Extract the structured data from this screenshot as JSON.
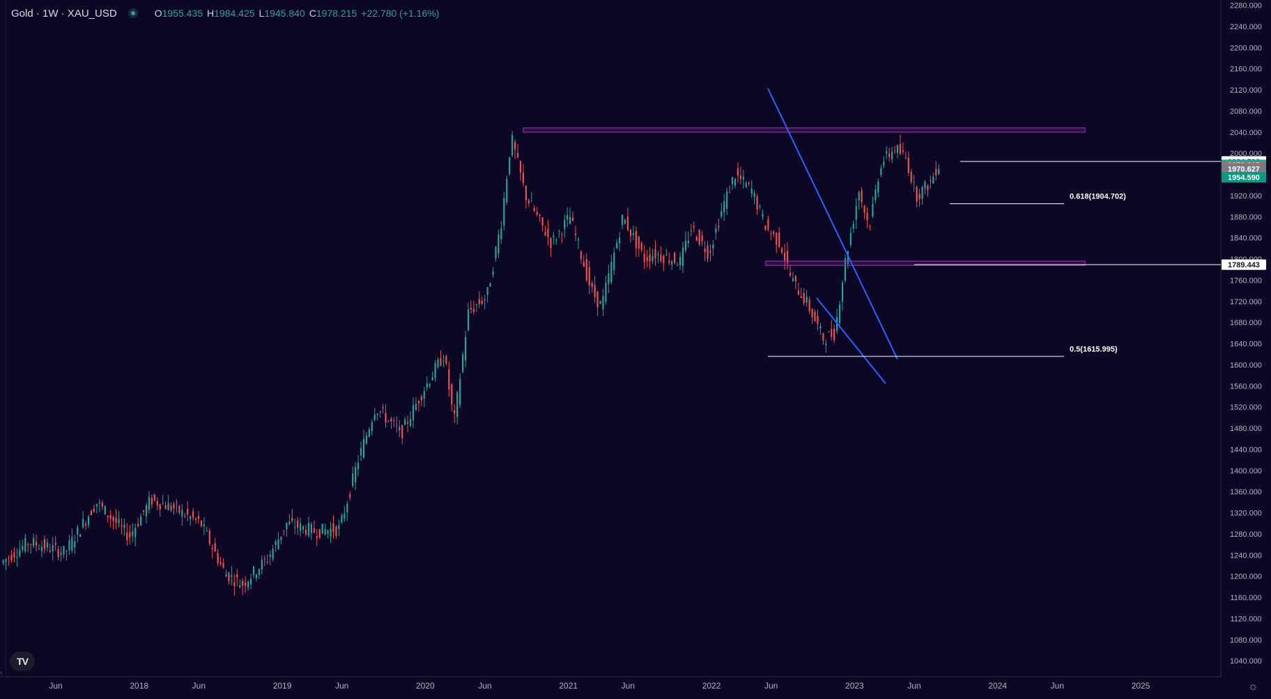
{
  "header": {
    "symbol": "Gold · 1W · XAU_USD",
    "open_label": "O",
    "open": "1955.435",
    "high_label": "H",
    "high": "1984.425",
    "low_label": "L",
    "low": "1945.840",
    "close_label": "C",
    "close": "1978.215",
    "change": "+22.780 (+1.16%)"
  },
  "price_axis": {
    "min": 1010,
    "max": 2290,
    "ticks": [
      "1040.000",
      "1080.000",
      "1120.000",
      "1160.000",
      "1200.000",
      "1240.000",
      "1280.000",
      "1320.000",
      "1360.000",
      "1400.000",
      "1440.000",
      "1480.000",
      "1520.000",
      "1560.000",
      "1600.000",
      "1640.000",
      "1680.000",
      "1720.000",
      "1760.000",
      "1800.000",
      "1840.000",
      "1880.000",
      "1920.000",
      "1960.000",
      "2000.000",
      "2040.000",
      "2080.000",
      "2120.000",
      "2160.000",
      "2200.000",
      "2240.000",
      "2280.000"
    ]
  },
  "time_axis": {
    "labels": [
      {
        "text": "Jun",
        "t": 2017.417
      },
      {
        "text": "2018",
        "t": 2018.0
      },
      {
        "text": "Jun",
        "t": 2018.417
      },
      {
        "text": "2019",
        "t": 2019.0
      },
      {
        "text": "Jun",
        "t": 2019.417
      },
      {
        "text": "2020",
        "t": 2020.0
      },
      {
        "text": "Jun",
        "t": 2020.417
      },
      {
        "text": "2021",
        "t": 2021.0
      },
      {
        "text": "Jun",
        "t": 2021.417
      },
      {
        "text": "2022",
        "t": 2022.0
      },
      {
        "text": "Jun",
        "t": 2022.417
      },
      {
        "text": "2023",
        "t": 2023.0
      },
      {
        "text": "Jun",
        "t": 2023.417
      },
      {
        "text": "2024",
        "t": 2024.0
      },
      {
        "text": "Jun",
        "t": 2024.417
      },
      {
        "text": "2025",
        "t": 2025.0
      }
    ]
  },
  "price_badges": [
    {
      "text": "1984.596",
      "price": 1984.6,
      "bg": "#ffffff",
      "fg": "#131722"
    },
    {
      "text": "1978.215",
      "price": 1978.2,
      "bg": "#26a69a",
      "fg": "#ffffff"
    },
    {
      "text": "1971.768",
      "price": 1971.8,
      "bg": "#ef5350",
      "fg": "#ffffff"
    },
    {
      "text": "1970.627",
      "price": 1970.6,
      "bg": "#787b86",
      "fg": "#ffffff"
    },
    {
      "text": "1954.590",
      "price": 1954.6,
      "bg": "#089981",
      "fg": "#ffffff"
    },
    {
      "text": "1789.443",
      "price": 1789.4,
      "bg": "#ffffff",
      "fg": "#131722"
    }
  ],
  "fib_labels": [
    {
      "text": "0.618(1904.702)",
      "price": 1904.7
    },
    {
      "text": "0.5(1615.995)",
      "price": 1616.0
    }
  ],
  "colors": {
    "background": "#0c0725",
    "bull": "#26a69a",
    "bear": "#ef5350",
    "zone": "#9c27b0",
    "trendline": "#2962ff"
  },
  "icons": {
    "logo": "tradingview-logo-icon",
    "settings": "gear-icon"
  },
  "logo_text": "TV"
}
